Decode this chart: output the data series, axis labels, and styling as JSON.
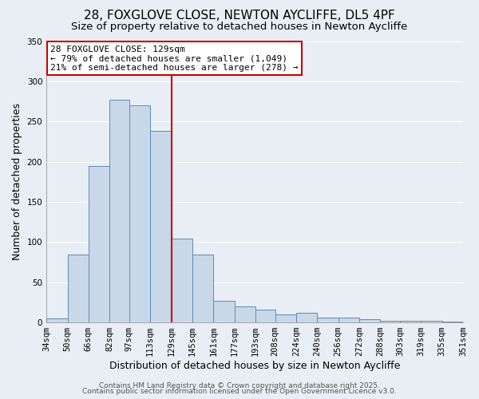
{
  "title": "28, FOXGLOVE CLOSE, NEWTON AYCLIFFE, DL5 4PF",
  "subtitle": "Size of property relative to detached houses in Newton Aycliffe",
  "xlabel": "Distribution of detached houses by size in Newton Aycliffe",
  "ylabel": "Number of detached properties",
  "bar_color": "#c8d8e8",
  "bar_edge_color": "#5b8db8",
  "background_color": "#e8eef4",
  "grid_color": "#ffffff",
  "bin_edges": [
    34,
    50,
    66,
    82,
    97,
    113,
    129,
    145,
    161,
    177,
    193,
    208,
    224,
    240,
    256,
    272,
    288,
    303,
    319,
    335,
    351
  ],
  "bin_labels": [
    "34sqm",
    "50sqm",
    "66sqm",
    "82sqm",
    "97sqm",
    "113sqm",
    "129sqm",
    "145sqm",
    "161sqm",
    "177sqm",
    "193sqm",
    "208sqm",
    "224sqm",
    "240sqm",
    "256sqm",
    "272sqm",
    "288sqm",
    "303sqm",
    "319sqm",
    "335sqm",
    "351sqm"
  ],
  "counts": [
    5,
    84,
    195,
    277,
    270,
    238,
    104,
    84,
    27,
    20,
    16,
    10,
    12,
    6,
    6,
    4,
    2,
    2,
    2,
    1
  ],
  "property_value": 129,
  "vline_color": "#cc0000",
  "annot_line1": "28 FOXGLOVE CLOSE: 129sqm",
  "annot_line2": "← 79% of detached houses are smaller (1,049)",
  "annot_line3": "21% of semi-detached houses are larger (278) →",
  "annotation_box_color": "#cc0000",
  "footer_line1": "Contains HM Land Registry data © Crown copyright and database right 2025.",
  "footer_line2": "Contains public sector information licensed under the Open Government Licence v3.0.",
  "ylim": [
    0,
    350
  ],
  "yticks": [
    0,
    50,
    100,
    150,
    200,
    250,
    300,
    350
  ],
  "title_fontsize": 11,
  "subtitle_fontsize": 9.5,
  "axis_label_fontsize": 9,
  "tick_fontsize": 7.5,
  "annotation_fontsize": 8,
  "footer_fontsize": 6.5
}
